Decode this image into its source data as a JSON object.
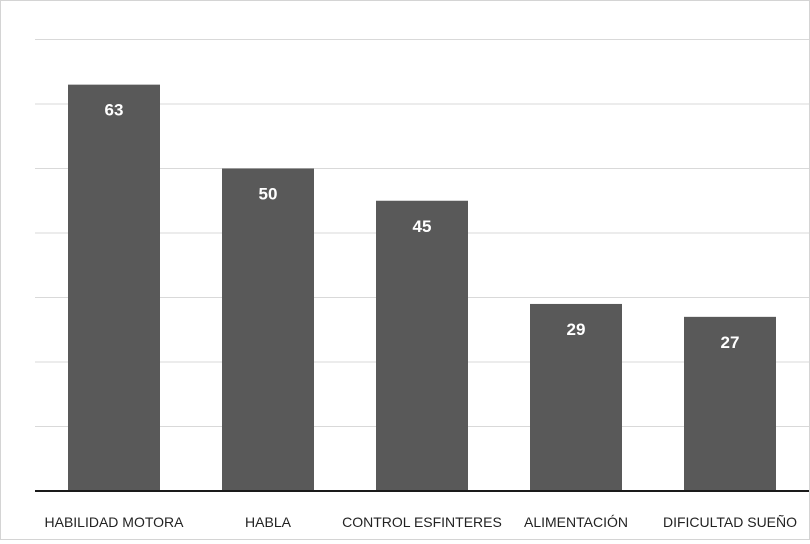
{
  "chart_data": {
    "type": "bar",
    "categories": [
      "HABILIDAD MOTORA",
      "HABLA",
      "CONTROL ESFINTERES",
      "ALIMENTACIÓN",
      "DIFICULTAD SUEÑO"
    ],
    "values": [
      63,
      50,
      45,
      29,
      27
    ],
    "ylim": [
      0,
      70
    ],
    "gridlines": true,
    "y_tick_step": 10,
    "bar_color": "#595959",
    "value_label_color": "#ffffff"
  }
}
